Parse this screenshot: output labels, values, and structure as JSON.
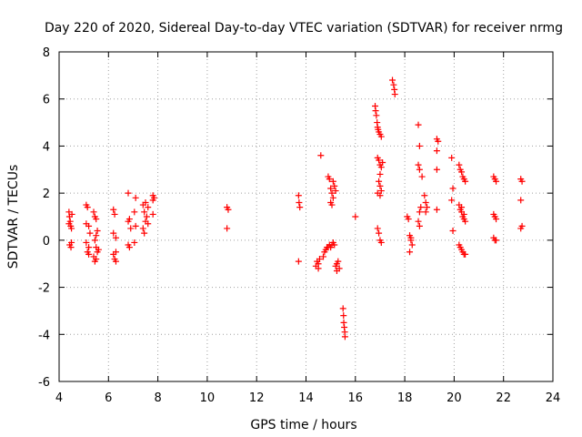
{
  "chart_data": {
    "type": "scatter",
    "title": "Day 220 of 2020, Sidereal Day-to-day VTEC variation (SDTVAR) for receiver nrmg",
    "xlabel": "GPS time / hours",
    "ylabel": "SDTVAR / TECUs",
    "xlim": [
      4,
      24
    ],
    "ylim": [
      -6,
      8
    ],
    "xticks": [
      4,
      6,
      8,
      10,
      12,
      14,
      16,
      18,
      20,
      22,
      24
    ],
    "yticks": [
      -6,
      -4,
      -2,
      0,
      2,
      4,
      6,
      8
    ],
    "grid": true,
    "marker": "+",
    "series": [
      {
        "name": "SDTVAR",
        "color": "#ff0000",
        "points": [
          [
            4.4,
            1.2
          ],
          [
            4.42,
            1.0
          ],
          [
            4.45,
            0.8
          ],
          [
            4.47,
            0.6
          ],
          [
            4.5,
            0.5
          ],
          [
            4.52,
            1.1
          ],
          [
            4.43,
            -0.2
          ],
          [
            4.48,
            -0.3
          ],
          [
            4.4,
            0.7
          ],
          [
            4.5,
            -0.1
          ],
          [
            5.1,
            1.5
          ],
          [
            5.15,
            1.4
          ],
          [
            5.1,
            0.7
          ],
          [
            5.2,
            0.6
          ],
          [
            5.1,
            -0.1
          ],
          [
            5.15,
            -0.5
          ],
          [
            5.2,
            -0.3
          ],
          [
            5.25,
            0.3
          ],
          [
            5.2,
            -0.6
          ],
          [
            5.4,
            1.2
          ],
          [
            5.45,
            1.0
          ],
          [
            5.5,
            0.9
          ],
          [
            5.55,
            0.4
          ],
          [
            5.5,
            0.2
          ],
          [
            5.45,
            0.0
          ],
          [
            5.5,
            -0.3
          ],
          [
            5.55,
            -0.5
          ],
          [
            5.5,
            -0.8
          ],
          [
            5.45,
            -0.9
          ],
          [
            5.6,
            -0.4
          ],
          [
            5.4,
            -0.7
          ],
          [
            6.2,
            1.3
          ],
          [
            6.25,
            1.1
          ],
          [
            6.2,
            0.3
          ],
          [
            6.3,
            0.1
          ],
          [
            6.2,
            -0.6
          ],
          [
            6.25,
            -0.8
          ],
          [
            6.3,
            -0.9
          ],
          [
            6.3,
            -0.5
          ],
          [
            6.8,
            2.0
          ],
          [
            6.85,
            0.9
          ],
          [
            6.8,
            0.8
          ],
          [
            6.9,
            0.5
          ],
          [
            6.85,
            -0.3
          ],
          [
            6.8,
            -0.2
          ],
          [
            7.1,
            1.8
          ],
          [
            7.05,
            1.2
          ],
          [
            7.1,
            0.6
          ],
          [
            7.05,
            -0.1
          ],
          [
            7.4,
            1.5
          ],
          [
            7.45,
            1.2
          ],
          [
            7.5,
            0.8
          ],
          [
            7.4,
            0.5
          ],
          [
            7.5,
            1.6
          ],
          [
            7.6,
            1.4
          ],
          [
            7.55,
            1.0
          ],
          [
            7.6,
            0.7
          ],
          [
            7.45,
            0.3
          ],
          [
            7.8,
            1.9
          ],
          [
            7.85,
            1.8
          ],
          [
            7.8,
            1.7
          ],
          [
            7.8,
            1.1
          ],
          [
            10.8,
            1.4
          ],
          [
            10.85,
            1.3
          ],
          [
            10.8,
            0.5
          ],
          [
            13.7,
            1.9
          ],
          [
            13.72,
            1.6
          ],
          [
            13.75,
            1.4
          ],
          [
            13.7,
            -0.9
          ],
          [
            14.4,
            -1.1
          ],
          [
            14.45,
            -0.9
          ],
          [
            14.5,
            -1.0
          ],
          [
            14.55,
            -0.8
          ],
          [
            14.5,
            -1.2
          ],
          [
            14.6,
            3.6
          ],
          [
            14.7,
            -0.7
          ],
          [
            14.75,
            -0.5
          ],
          [
            14.8,
            -0.4
          ],
          [
            14.85,
            -0.3
          ],
          [
            14.9,
            -0.3
          ],
          [
            14.95,
            -0.2
          ],
          [
            15.0,
            -0.3
          ],
          [
            15.05,
            -0.2
          ],
          [
            15.1,
            -0.1
          ],
          [
            15.15,
            -0.2
          ],
          [
            14.9,
            2.7
          ],
          [
            14.95,
            2.6
          ],
          [
            15.0,
            2.2
          ],
          [
            15.05,
            2.0
          ],
          [
            15.1,
            1.8
          ],
          [
            15.0,
            1.6
          ],
          [
            15.05,
            1.5
          ],
          [
            15.1,
            2.5
          ],
          [
            15.15,
            2.3
          ],
          [
            15.2,
            2.1
          ],
          [
            15.2,
            -1.1
          ],
          [
            15.25,
            -1.0
          ],
          [
            15.3,
            -0.9
          ],
          [
            15.35,
            -1.2
          ],
          [
            15.25,
            -1.3
          ],
          [
            15.5,
            -2.9
          ],
          [
            15.52,
            -3.2
          ],
          [
            15.53,
            -3.5
          ],
          [
            15.55,
            -3.7
          ],
          [
            15.57,
            -3.9
          ],
          [
            15.58,
            -4.1
          ],
          [
            16.0,
            1.0
          ],
          [
            16.8,
            5.7
          ],
          [
            16.82,
            5.5
          ],
          [
            16.85,
            5.3
          ],
          [
            16.88,
            5.0
          ],
          [
            16.9,
            4.8
          ],
          [
            16.92,
            4.7
          ],
          [
            16.95,
            4.6
          ],
          [
            17.0,
            4.5
          ],
          [
            17.05,
            4.4
          ],
          [
            16.9,
            3.5
          ],
          [
            16.95,
            3.4
          ],
          [
            17.0,
            3.2
          ],
          [
            17.05,
            3.1
          ],
          [
            17.1,
            3.3
          ],
          [
            17.0,
            2.8
          ],
          [
            16.95,
            2.5
          ],
          [
            17.0,
            2.3
          ],
          [
            17.05,
            2.1
          ],
          [
            17.0,
            1.9
          ],
          [
            16.9,
            2.0
          ],
          [
            16.9,
            0.5
          ],
          [
            16.95,
            0.3
          ],
          [
            17.0,
            0.0
          ],
          [
            17.05,
            -0.1
          ],
          [
            17.5,
            6.8
          ],
          [
            17.55,
            6.6
          ],
          [
            17.58,
            6.4
          ],
          [
            17.6,
            6.2
          ],
          [
            18.1,
            1.0
          ],
          [
            18.15,
            0.9
          ],
          [
            18.2,
            0.2
          ],
          [
            18.25,
            0.0
          ],
          [
            18.3,
            -0.2
          ],
          [
            18.2,
            -0.5
          ],
          [
            18.25,
            0.1
          ],
          [
            18.55,
            4.9
          ],
          [
            18.6,
            4.0
          ],
          [
            18.55,
            3.2
          ],
          [
            18.6,
            3.0
          ],
          [
            18.7,
            2.7
          ],
          [
            18.65,
            1.4
          ],
          [
            18.6,
            1.2
          ],
          [
            18.55,
            0.8
          ],
          [
            18.6,
            0.6
          ],
          [
            18.8,
            1.9
          ],
          [
            18.85,
            1.6
          ],
          [
            18.9,
            1.4
          ],
          [
            18.85,
            1.2
          ],
          [
            19.3,
            4.3
          ],
          [
            19.35,
            4.2
          ],
          [
            19.3,
            3.8
          ],
          [
            19.3,
            3.0
          ],
          [
            19.3,
            1.3
          ],
          [
            19.9,
            3.5
          ],
          [
            19.95,
            2.2
          ],
          [
            19.9,
            1.7
          ],
          [
            19.95,
            0.4
          ],
          [
            20.2,
            3.2
          ],
          [
            20.25,
            3.0
          ],
          [
            20.3,
            2.9
          ],
          [
            20.35,
            2.7
          ],
          [
            20.4,
            2.6
          ],
          [
            20.45,
            2.5
          ],
          [
            20.2,
            1.5
          ],
          [
            20.25,
            1.3
          ],
          [
            20.3,
            1.2
          ],
          [
            20.35,
            1.0
          ],
          [
            20.4,
            0.9
          ],
          [
            20.45,
            0.8
          ],
          [
            20.3,
            1.4
          ],
          [
            20.4,
            1.1
          ],
          [
            20.2,
            -0.2
          ],
          [
            20.25,
            -0.3
          ],
          [
            20.3,
            -0.4
          ],
          [
            20.35,
            -0.5
          ],
          [
            20.4,
            -0.6
          ],
          [
            20.45,
            -0.6
          ],
          [
            21.6,
            2.7
          ],
          [
            21.65,
            2.6
          ],
          [
            21.7,
            2.5
          ],
          [
            21.6,
            1.1
          ],
          [
            21.65,
            1.0
          ],
          [
            21.7,
            0.9
          ],
          [
            21.6,
            0.1
          ],
          [
            21.65,
            0.0
          ],
          [
            21.7,
            0.0
          ],
          [
            22.7,
            2.6
          ],
          [
            22.75,
            2.5
          ],
          [
            22.7,
            1.7
          ],
          [
            22.75,
            0.6
          ],
          [
            22.7,
            0.5
          ]
        ]
      }
    ]
  }
}
